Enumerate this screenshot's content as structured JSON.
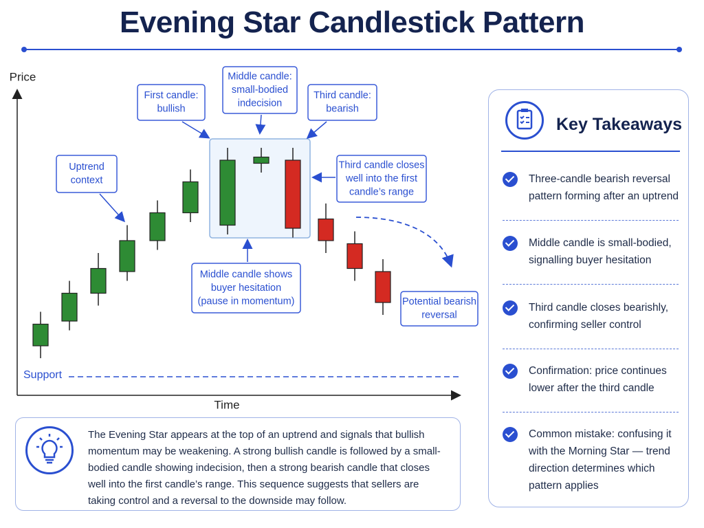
{
  "header": {
    "title": "Evening Star Candlestick Pattern"
  },
  "chart_data": {
    "type": "candlestick",
    "y_label": "Price",
    "x_label": "Time",
    "categories": [
      null,
      null,
      null,
      null,
      null,
      null,
      null,
      null,
      null,
      null,
      null,
      null
    ],
    "open": [
      16,
      24,
      33,
      40,
      50,
      59,
      55,
      75,
      76,
      57,
      49,
      40
    ],
    "close": [
      23,
      33,
      41,
      50,
      59,
      69,
      76,
      77,
      54,
      50,
      41,
      30
    ],
    "high": [
      27,
      37,
      46,
      55,
      63,
      73,
      80,
      80,
      80,
      62,
      53,
      44
    ],
    "low": [
      12,
      21,
      29,
      37,
      47,
      56,
      52,
      72,
      51,
      46,
      37,
      26
    ],
    "up_color": "#2e8b34",
    "down_color": "#d42a22",
    "ylim": [
      0,
      100
    ],
    "support": {
      "label": "Support",
      "value": 6
    },
    "annotations": [
      {
        "lines": [
          "Uptrend",
          "context"
        ]
      },
      {
        "lines": [
          "First candle:",
          "bullish"
        ]
      },
      {
        "lines": [
          "Middle candle:",
          "small-bodied",
          "indecision"
        ]
      },
      {
        "lines": [
          "Third candle:",
          "bearish"
        ]
      },
      {
        "lines": [
          "Third candle closes",
          "well into the first",
          "candle’s range"
        ]
      },
      {
        "lines": [
          "Middle candle shows",
          "buyer hesitation",
          "(pause in momentum)"
        ]
      },
      {
        "lines": [
          "Potential bearish",
          "reversal"
        ]
      }
    ]
  },
  "takeaways": {
    "title": "Key Takeaways",
    "items": [
      "Three-candle bearish reversal pattern forming after an uptrend",
      "Middle candle is small-bodied, signalling buyer hesitation",
      "Third candle closes bearishly, confirming seller control",
      "Confirmation: price continues lower after the third candle",
      "Common mistake: confusing it with the Morning Star — trend direction determines which pattern applies"
    ]
  },
  "description": {
    "text": "The Evening Star appears at the top of an uptrend and signals that bullish momentum may be weakening. A strong bullish candle is followed by a small-bodied candle showing indecision, then a strong bearish candle that closes well into the first candle’s range. This sequence suggests that sellers are taking control and a reversal to the downside may follow."
  }
}
